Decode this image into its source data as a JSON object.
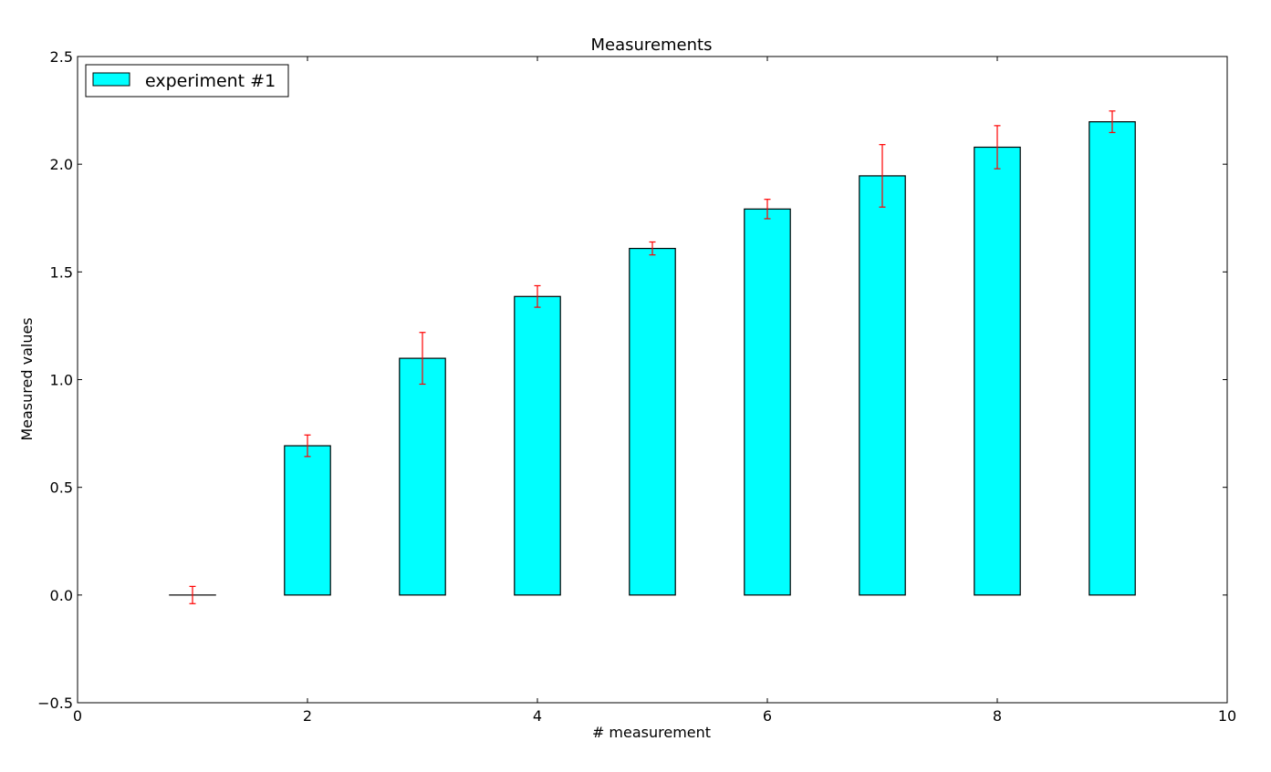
{
  "chart_data": {
    "type": "bar",
    "title": "Measurements",
    "xlabel": "# measurement",
    "ylabel": "Measured values",
    "xlim": [
      0,
      10
    ],
    "ylim": [
      -0.5,
      2.5
    ],
    "xticks": [
      0,
      2,
      4,
      6,
      8,
      10
    ],
    "xtick_labels": [
      "0",
      "2",
      "4",
      "6",
      "8",
      "10"
    ],
    "yticks": [
      -0.5,
      0.0,
      0.5,
      1.0,
      1.5,
      2.0,
      2.5
    ],
    "ytick_labels": [
      "−0.5",
      "0.0",
      "0.5",
      "1.0",
      "1.5",
      "2.0",
      "2.5"
    ],
    "grid": false,
    "legend": {
      "position": "top-left",
      "entries": [
        "experiment #1"
      ]
    },
    "bar_width": 0.4,
    "series": [
      {
        "name": "experiment #1",
        "color": "#00ffff",
        "edge_color": "#000000",
        "error_color": "#ff0000",
        "x": [
          1,
          2,
          3,
          4,
          5,
          6,
          7,
          8,
          9
        ],
        "values": [
          0.0,
          0.693,
          1.099,
          1.386,
          1.609,
          1.792,
          1.946,
          2.079,
          2.197
        ],
        "errors": [
          0.04,
          0.05,
          0.12,
          0.05,
          0.03,
          0.045,
          0.145,
          0.1,
          0.05
        ]
      }
    ]
  }
}
